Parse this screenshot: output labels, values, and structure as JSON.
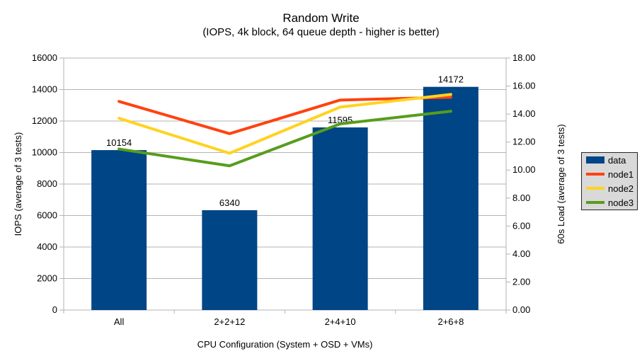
{
  "chart_data": {
    "type": "bar",
    "title": "Random Write",
    "subtitle": "(IOPS, 4k block, 64 queue depth - higher is better)",
    "categories": [
      "All",
      "2+2+12",
      "2+4+10",
      "2+6+8"
    ],
    "series": [
      {
        "name": "data",
        "kind": "bar",
        "axis": "left",
        "color": "#004586",
        "values": [
          10154,
          6340,
          11595,
          14172
        ],
        "data_labels": true
      },
      {
        "name": "node1",
        "kind": "line",
        "axis": "right",
        "color": "#FF420E",
        "values": [
          14.9,
          12.6,
          15.0,
          15.2
        ]
      },
      {
        "name": "node2",
        "kind": "line",
        "axis": "right",
        "color": "#FFD320",
        "values": [
          13.7,
          11.2,
          14.5,
          15.4
        ]
      },
      {
        "name": "node3",
        "kind": "line",
        "axis": "right",
        "color": "#579D1C",
        "values": [
          11.5,
          10.3,
          13.3,
          14.2
        ]
      }
    ],
    "xlabel": "CPU Configuration (System + OSD + VMs)",
    "ylabel_left": "IOPS (average of 3 tests)",
    "ylabel_right": "60s Load (average of 3 tests)",
    "left_axis": {
      "min": 0,
      "max": 16000,
      "step": 2000
    },
    "right_axis": {
      "min": 0,
      "max": 18,
      "step": 2,
      "decimals": 2
    },
    "grid": "horizontal",
    "legend_position": "right"
  },
  "colors": {
    "grid": "#b3b3b3",
    "axis": "#b3b3b3",
    "legend_background": "#d9d9d9",
    "legend_border": "#262626",
    "text": "#000000",
    "background": "#ffffff"
  }
}
